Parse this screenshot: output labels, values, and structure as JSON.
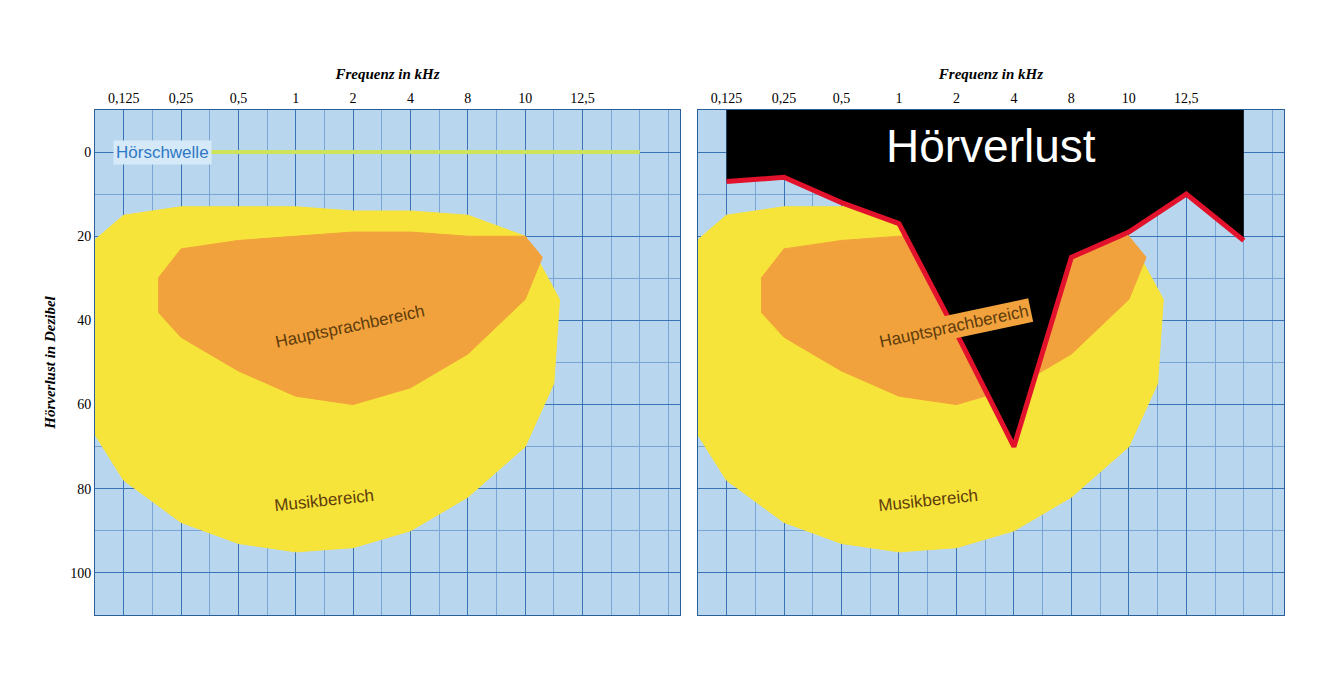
{
  "chart_data": [
    {
      "type": "line",
      "x_label": "Frequenz in kHz",
      "y_label": "Hörverlust in Dezibel",
      "categories": [
        "0,125",
        "0,25",
        "0,5",
        "1",
        "2",
        "4",
        "8",
        "10",
        "12,5",
        null
      ],
      "xlim": [
        -0.5,
        9.7
      ],
      "ylim": [
        110,
        -10
      ],
      "yticks": [
        0,
        20,
        40,
        60,
        80,
        100
      ],
      "grid": true,
      "regions": [
        {
          "name": "Musikbereich",
          "color": "#f7e43a",
          "x": [
            -0.6,
            0,
            1,
            2,
            3,
            4,
            5,
            6,
            7,
            7.6,
            7.5,
            7,
            6,
            5,
            4,
            3,
            2,
            1,
            0,
            -0.6
          ],
          "y": [
            22,
            15,
            13,
            13,
            13,
            14,
            14,
            15,
            20,
            35,
            55,
            70,
            82,
            90,
            94,
            95,
            93,
            88,
            78,
            65
          ]
        },
        {
          "name": "Hauptsprachbereich",
          "color": "#f2a23c",
          "x": [
            0.6,
            1,
            2,
            3,
            4,
            5,
            6,
            7,
            7.3,
            7,
            6,
            5,
            4,
            3,
            2,
            1,
            0.6
          ],
          "y": [
            30,
            23,
            21,
            20,
            19,
            19,
            20,
            20,
            25,
            35,
            48,
            56,
            60,
            58,
            52,
            44,
            38
          ]
        }
      ],
      "series": [
        {
          "name": "Hörschwelle",
          "type": "line",
          "color": "#cde35a",
          "values": [
            0,
            0,
            0,
            0,
            0,
            0,
            0,
            0,
            0,
            0
          ]
        }
      ]
    },
    {
      "type": "line",
      "x_label": "Frequenz in kHz",
      "categories": [
        "0,125",
        "0,25",
        "0,5",
        "1",
        "2",
        "4",
        "8",
        "10",
        "12,5",
        null
      ],
      "xlim": [
        -0.5,
        9.7
      ],
      "ylim": [
        110,
        -10
      ],
      "yticks": [
        0,
        20,
        40,
        60,
        80,
        100
      ],
      "grid": true,
      "tick_labels": "x",
      "regions": [
        {
          "name": "Musikbereich",
          "color": "#f7e43a",
          "x": [
            -0.6,
            0,
            1,
            2,
            3,
            4,
            5,
            6,
            7,
            7.6,
            7.5,
            7,
            6,
            5,
            4,
            3,
            2,
            1,
            0,
            -0.6
          ],
          "y": [
            22,
            15,
            13,
            13,
            13,
            14,
            14,
            15,
            20,
            35,
            55,
            70,
            82,
            90,
            94,
            95,
            93,
            88,
            78,
            65
          ]
        },
        {
          "name": "Hauptsprachbereich",
          "color": "#f2a23c",
          "x": [
            0.6,
            1,
            2,
            3,
            4,
            5,
            6,
            7,
            7.3,
            7,
            6,
            5,
            4,
            3,
            2,
            1,
            0.6
          ],
          "y": [
            30,
            23,
            21,
            20,
            19,
            19,
            20,
            20,
            25,
            35,
            48,
            56,
            60,
            58,
            52,
            44,
            38
          ]
        }
      ],
      "series": [
        {
          "name": "Hörverlust",
          "type": "area",
          "color": "#e3122c",
          "values": [
            7,
            6,
            12,
            17,
            43,
            70,
            25,
            19,
            10,
            21
          ]
        }
      ]
    }
  ]
}
